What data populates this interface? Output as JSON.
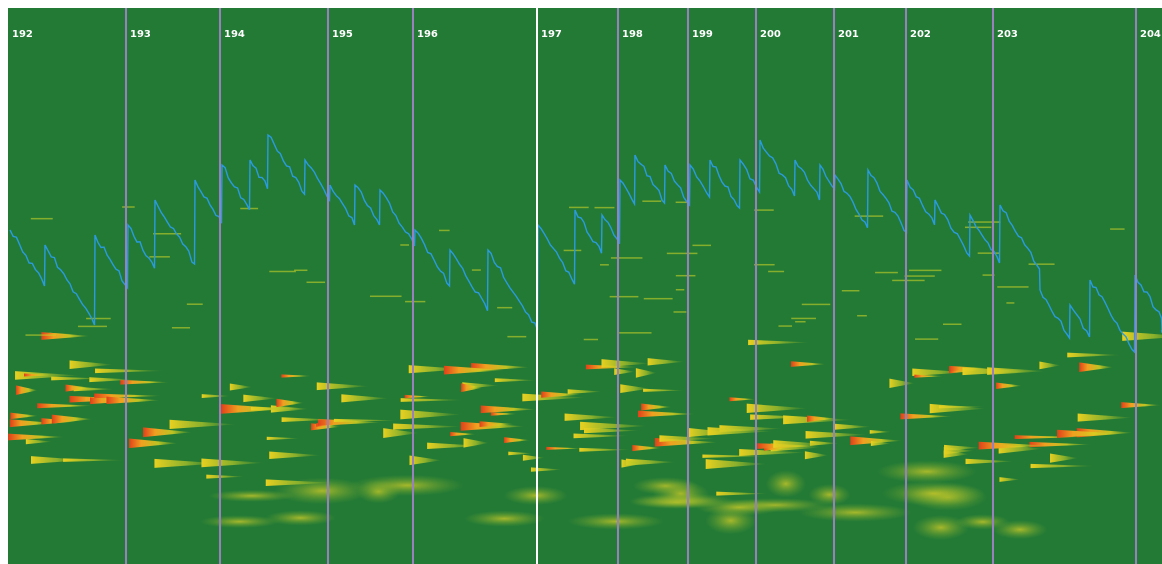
{
  "bar_markers": {
    "labels": [
      "192",
      "193",
      "194",
      "195",
      "196",
      "197",
      "198",
      "199",
      "200",
      "201",
      "202",
      "203",
      "204"
    ]
  }
}
